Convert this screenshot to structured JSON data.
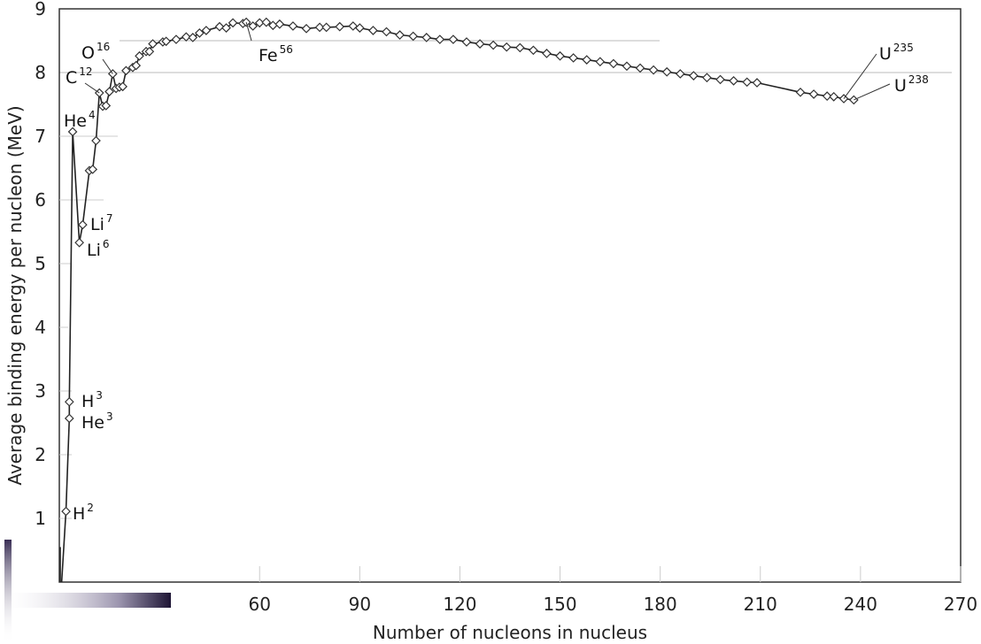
{
  "chart_data": {
    "type": "line",
    "title": "",
    "xlabel": "Number of nucleons in nucleus",
    "ylabel": "Average binding energy per nucleon (MeV)",
    "xlim": [
      0,
      270
    ],
    "ylim": [
      0,
      9
    ],
    "x_ticks": [
      "60",
      "90",
      "120",
      "150",
      "180",
      "210",
      "240",
      "270"
    ],
    "x_tick_values": [
      60,
      90,
      120,
      150,
      180,
      210,
      240,
      270
    ],
    "y_ticks": [
      "1",
      "2",
      "3",
      "4",
      "5",
      "6",
      "7",
      "8",
      "9"
    ],
    "y_tick_values": [
      1,
      2,
      3,
      4,
      5,
      6,
      7,
      8,
      9
    ],
    "reference_lines": [
      8,
      8.5
    ],
    "grid": false,
    "line_color": "#222222",
    "marker": "open-diamond",
    "points": [
      [
        2,
        1.11
      ],
      [
        3,
        2.57
      ],
      [
        3,
        2.83
      ],
      [
        4,
        7.07
      ],
      [
        6,
        5.33
      ],
      [
        7,
        5.61
      ],
      [
        9,
        6.46
      ],
      [
        10,
        6.48
      ],
      [
        11,
        6.93
      ],
      [
        12,
        7.68
      ],
      [
        13,
        7.47
      ],
      [
        14,
        7.48
      ],
      [
        15,
        7.7
      ],
      [
        16,
        7.98
      ],
      [
        17,
        7.75
      ],
      [
        18,
        7.77
      ],
      [
        19,
        7.78
      ],
      [
        20,
        8.03
      ],
      [
        22,
        8.08
      ],
      [
        23,
        8.11
      ],
      [
        24,
        8.26
      ],
      [
        26,
        8.33
      ],
      [
        27,
        8.33
      ],
      [
        28,
        8.45
      ],
      [
        31,
        8.48
      ],
      [
        32,
        8.49
      ],
      [
        35,
        8.52
      ],
      [
        38,
        8.56
      ],
      [
        40,
        8.55
      ],
      [
        42,
        8.62
      ],
      [
        44,
        8.66
      ],
      [
        48,
        8.72
      ],
      [
        50,
        8.7
      ],
      [
        52,
        8.78
      ],
      [
        55,
        8.77
      ],
      [
        56,
        8.79
      ],
      [
        58,
        8.73
      ],
      [
        60,
        8.78
      ],
      [
        62,
        8.79
      ],
      [
        64,
        8.74
      ],
      [
        66,
        8.76
      ],
      [
        70,
        8.73
      ],
      [
        74,
        8.69
      ],
      [
        78,
        8.71
      ],
      [
        80,
        8.71
      ],
      [
        84,
        8.72
      ],
      [
        88,
        8.73
      ],
      [
        90,
        8.7
      ],
      [
        94,
        8.66
      ],
      [
        98,
        8.64
      ],
      [
        102,
        8.59
      ],
      [
        106,
        8.57
      ],
      [
        110,
        8.55
      ],
      [
        114,
        8.52
      ],
      [
        118,
        8.52
      ],
      [
        122,
        8.48
      ],
      [
        126,
        8.45
      ],
      [
        130,
        8.43
      ],
      [
        134,
        8.4
      ],
      [
        138,
        8.39
      ],
      [
        142,
        8.35
      ],
      [
        146,
        8.3
      ],
      [
        150,
        8.26
      ],
      [
        154,
        8.23
      ],
      [
        158,
        8.2
      ],
      [
        162,
        8.17
      ],
      [
        166,
        8.14
      ],
      [
        170,
        8.1
      ],
      [
        174,
        8.07
      ],
      [
        178,
        8.04
      ],
      [
        182,
        8.01
      ],
      [
        186,
        7.98
      ],
      [
        190,
        7.95
      ],
      [
        194,
        7.92
      ],
      [
        198,
        7.89
      ],
      [
        202,
        7.87
      ],
      [
        206,
        7.85
      ],
      [
        209,
        7.84
      ],
      [
        222,
        7.69
      ],
      [
        226,
        7.66
      ],
      [
        230,
        7.63
      ],
      [
        232,
        7.62
      ],
      [
        235,
        7.59
      ],
      [
        238,
        7.57
      ]
    ],
    "annotations": [
      {
        "element": "H",
        "mass": "2",
        "x": 2,
        "y": 1.11
      },
      {
        "element": "He",
        "mass": "3",
        "x": 3,
        "y": 2.57
      },
      {
        "element": "H",
        "mass": "3",
        "x": 3,
        "y": 2.83
      },
      {
        "element": "Li",
        "mass": "6",
        "x": 6,
        "y": 5.33
      },
      {
        "element": "Li",
        "mass": "7",
        "x": 7,
        "y": 5.61
      },
      {
        "element": "He",
        "mass": "4",
        "x": 4,
        "y": 7.07
      },
      {
        "element": "C",
        "mass": "12",
        "x": 12,
        "y": 7.68
      },
      {
        "element": "O",
        "mass": "16",
        "x": 16,
        "y": 7.98
      },
      {
        "element": "Fe",
        "mass": "56",
        "x": 56,
        "y": 8.79
      },
      {
        "element": "U",
        "mass": "235",
        "x": 235,
        "y": 7.59
      },
      {
        "element": "U",
        "mass": "238",
        "x": 238,
        "y": 7.57
      }
    ]
  }
}
